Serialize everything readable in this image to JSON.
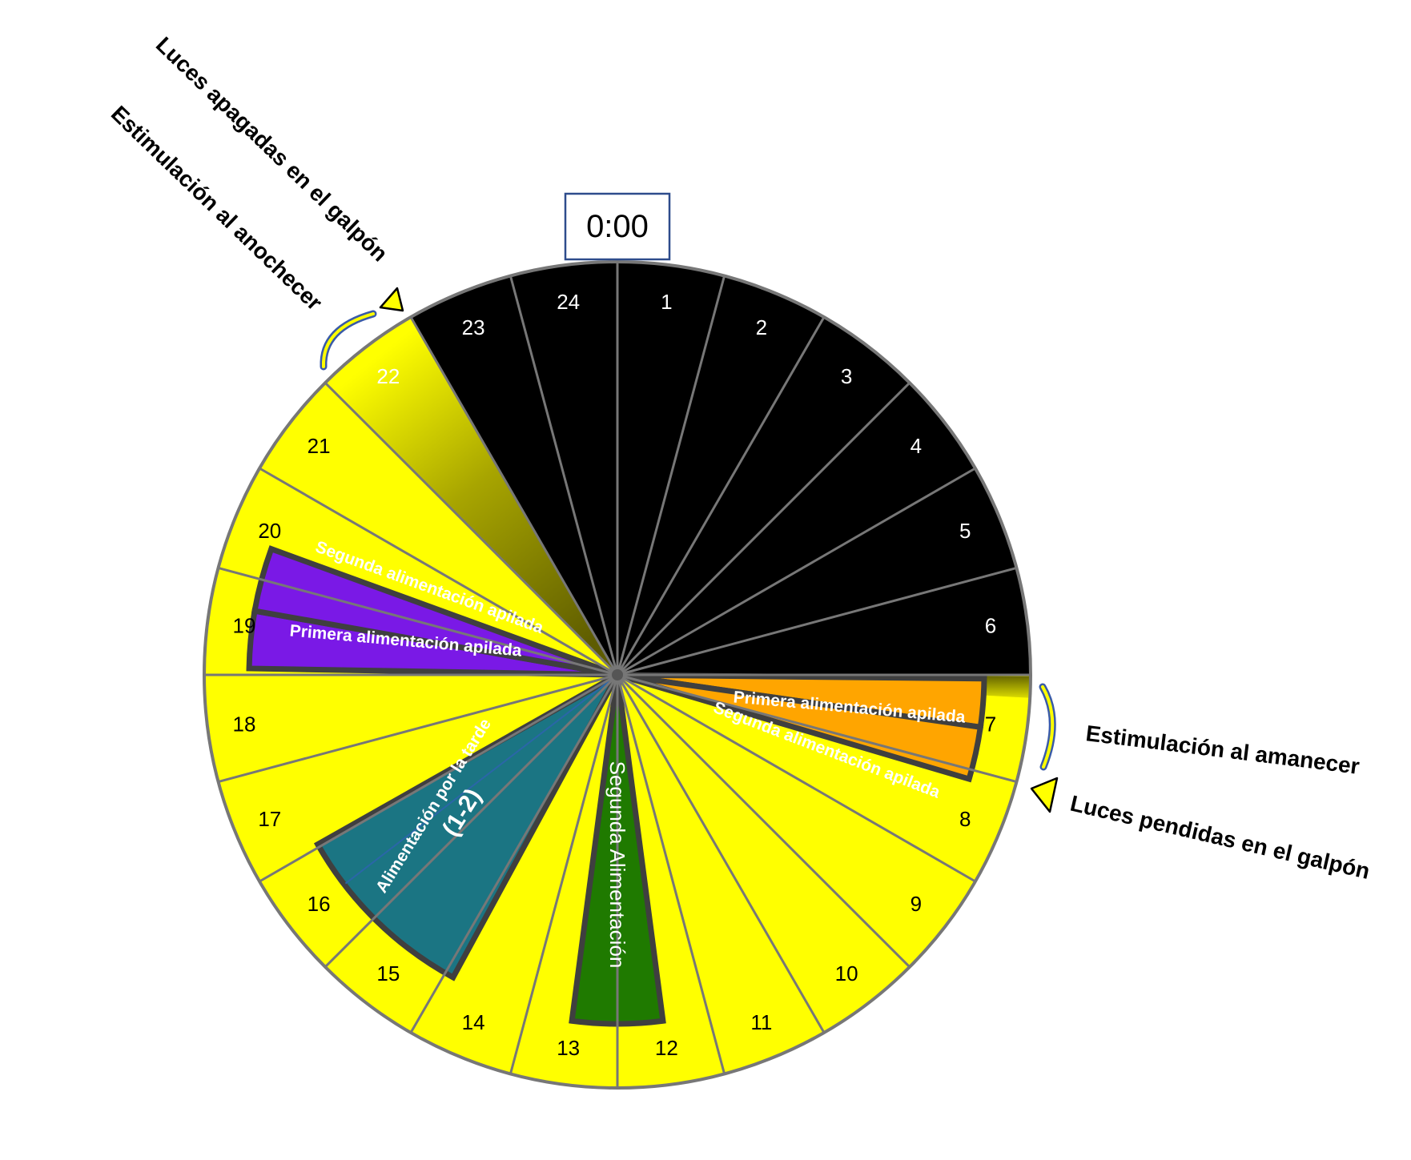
{
  "clock_label": "0:00",
  "hours": [
    "1",
    "2",
    "3",
    "4",
    "5",
    "6",
    "7",
    "8",
    "9",
    "10",
    "11",
    "12",
    "13",
    "14",
    "15",
    "16",
    "17",
    "18",
    "19",
    "20",
    "21",
    "22",
    "23",
    "24"
  ],
  "colors": {
    "night": "#000000",
    "day": "#ffff00",
    "dusk_dark": "#6f6d00",
    "morning_feed": "#ffa500",
    "afternoon_feed": "#1b7583",
    "second_feed": "#1f7a00",
    "evening_feed": "#7a19e6",
    "divider": "#777777",
    "band_outline": "#3f3f3f",
    "arrow_blue": "#3a5ba8",
    "marker_yellow": "#ffff00",
    "clock_border": "#2e4c8c"
  },
  "bands": {
    "morning_first": "Primera alimentación apilada",
    "morning_second": "Segunda alimentación apilada",
    "afternoon_line1": "Alimentación por la tarde",
    "afternoon_line2": "(1-2)",
    "second_feed": "Segunda Alimentación",
    "evening_first": "Primera alimentación apilada",
    "evening_second": "Segunda alimentación apilada"
  },
  "annotations": {
    "lights_off": "Luces apagadas en el galpón",
    "dusk_stimulation": "Estimulación al anochecer",
    "dawn_stimulation": "Estimulación al amanecer",
    "lights_on": "Luces pendidas en el galpón"
  },
  "icons": {
    "dawn_arrow": "curved-arrow-icon",
    "dusk_arrow": "curved-arrow-icon",
    "lights_on_marker": "triangle-marker-icon",
    "lights_off_marker": "triangle-marker-icon"
  }
}
